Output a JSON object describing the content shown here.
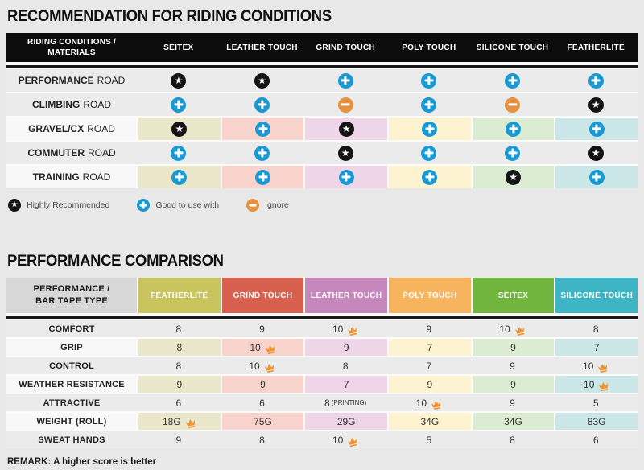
{
  "chart_data": [
    {
      "type": "table",
      "title": "RECOMMENDATION FOR RIDING CONDITIONS",
      "corner": [
        "RIDING CONDITIONS /",
        "MATERIALS"
      ],
      "columns": [
        "SEITEX",
        "LEATHER TOUCH",
        "GRIND TOUCH",
        "POLY TOUCH",
        "SILICONE TOUCH",
        "FEATHERLITE"
      ],
      "rows": [
        {
          "label": "PERFORMANCE",
          "suffix": "ROAD",
          "tinted": false,
          "cells": [
            "star",
            "star",
            "plus",
            "plus",
            "plus",
            "plus"
          ]
        },
        {
          "label": "CLIMBING",
          "suffix": "ROAD",
          "tinted": false,
          "cells": [
            "plus",
            "plus",
            "minus",
            "plus",
            "minus",
            "star"
          ]
        },
        {
          "label": "GRAVEL/CX",
          "suffix": "ROAD",
          "tinted": true,
          "cells": [
            "star",
            "plus",
            "star",
            "plus",
            "plus",
            "plus"
          ]
        },
        {
          "label": "COMMUTER",
          "suffix": "ROAD",
          "tinted": false,
          "cells": [
            "plus",
            "plus",
            "star",
            "plus",
            "plus",
            "star"
          ]
        },
        {
          "label": "TRAINING",
          "suffix": "ROAD",
          "tinted": true,
          "cells": [
            "plus",
            "plus",
            "plus",
            "plus",
            "star",
            "plus"
          ]
        }
      ],
      "legend": [
        {
          "icon": "star",
          "label": "Highly Recommended"
        },
        {
          "icon": "plus",
          "label": "Good to use with"
        },
        {
          "icon": "minus",
          "label": "Ignore"
        }
      ]
    },
    {
      "type": "table",
      "title": "PERFORMANCE COMPARISON",
      "corner": [
        "PERFORMANCE /",
        "BAR TAPE TYPE"
      ],
      "columns": [
        {
          "label": "FEATHERLITE",
          "color": "#c9c45e"
        },
        {
          "label": "GRIND TOUCH",
          "color": "#d8604f"
        },
        {
          "label": "LEATHER TOUCH",
          "color": "#c687bd"
        },
        {
          "label": "POLY TOUCH",
          "color": "#f6b45e"
        },
        {
          "label": "SEITEX",
          "color": "#72b53e"
        },
        {
          "label": "SILICONE TOUCH",
          "color": "#3eb5c4"
        }
      ],
      "rows": [
        {
          "label": "COMFORT",
          "tinted": false,
          "cells": [
            {
              "v": "8"
            },
            {
              "v": "9"
            },
            {
              "v": "10",
              "crown": true
            },
            {
              "v": "9"
            },
            {
              "v": "10",
              "crown": true
            },
            {
              "v": "8"
            }
          ]
        },
        {
          "label": "GRIP",
          "tinted": true,
          "cells": [
            {
              "v": "8"
            },
            {
              "v": "10",
              "crown": true
            },
            {
              "v": "9"
            },
            {
              "v": "7"
            },
            {
              "v": "9"
            },
            {
              "v": "7"
            }
          ]
        },
        {
          "label": "CONTROL",
          "tinted": false,
          "cells": [
            {
              "v": "8"
            },
            {
              "v": "10",
              "crown": true
            },
            {
              "v": "8"
            },
            {
              "v": "7"
            },
            {
              "v": "9"
            },
            {
              "v": "10",
              "crown": true
            }
          ]
        },
        {
          "label": "WEATHER RESISTANCE",
          "tinted": true,
          "cells": [
            {
              "v": "9"
            },
            {
              "v": "9"
            },
            {
              "v": "7"
            },
            {
              "v": "9"
            },
            {
              "v": "9"
            },
            {
              "v": "10",
              "crown": true
            }
          ]
        },
        {
          "label": "ATTRACTIVE",
          "tinted": false,
          "cells": [
            {
              "v": "6"
            },
            {
              "v": "6"
            },
            {
              "v": "8",
              "note": "(PRINTING)"
            },
            {
              "v": "10",
              "crown": true
            },
            {
              "v": "9"
            },
            {
              "v": "5"
            }
          ]
        },
        {
          "label": "WEIGHT (ROLL)",
          "tinted": true,
          "cells": [
            {
              "v": "18G",
              "crown": true
            },
            {
              "v": "75G"
            },
            {
              "v": "29G"
            },
            {
              "v": "34G"
            },
            {
              "v": "34G"
            },
            {
              "v": "83G"
            }
          ]
        },
        {
          "label": "SWEAT HANDS",
          "tinted": false,
          "cells": [
            {
              "v": "9"
            },
            {
              "v": "8"
            },
            {
              "v": "10",
              "crown": true
            },
            {
              "v": "5"
            },
            {
              "v": "8"
            },
            {
              "v": "6"
            }
          ]
        }
      ],
      "remark": "REMARK: A higher score is better"
    }
  ],
  "colors": {
    "tints": [
      "#eae7cb",
      "#f7d3cb",
      "#eed5e7",
      "#fdf3d0",
      "#dcecd2",
      "#cbe6e6"
    ],
    "star_bg": "#141414",
    "plus_bg": "#1899d4",
    "minus_bg": "#e8913c",
    "crown": "#f0922f",
    "header_bg": "#0d0d0d"
  },
  "icons": {
    "star": "★",
    "plus": "+",
    "minus": "−",
    "crown": "crown"
  }
}
